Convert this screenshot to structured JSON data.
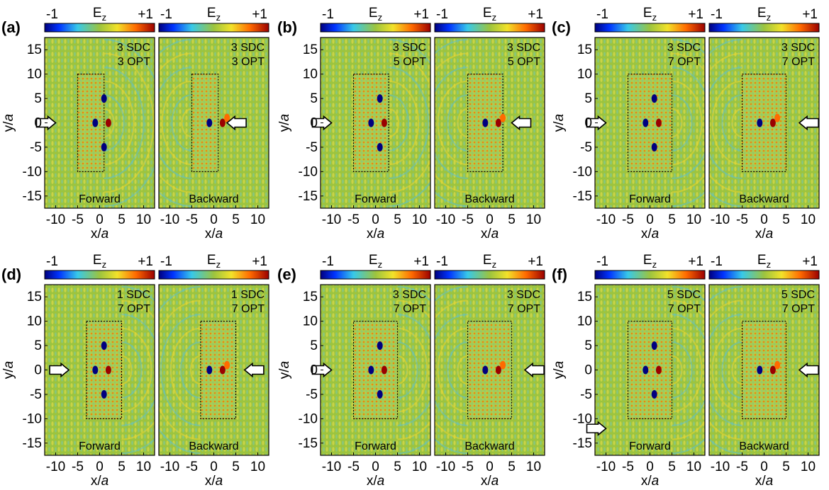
{
  "figure": {
    "colorbar": {
      "min_label": "-1",
      "max_label": "+1",
      "field": "E",
      "field_sub": "z"
    },
    "axis": {
      "x_label_main": "x/",
      "x_label_italic": "a",
      "y_label_main": "y/",
      "y_label_italic": "a",
      "x_ticks": [
        "-10",
        "-5",
        "0",
        "5",
        "10"
      ],
      "y_ticks": [
        "15",
        "10",
        "5",
        "0",
        "-5",
        "-10",
        "-15"
      ]
    },
    "colors": {
      "field_background": "#9cc43f",
      "cmap": [
        "#00007f",
        "#0055ff",
        "#38c9e8",
        "#9cc43f",
        "#f2e22a",
        "#ff6a00",
        "#9b0000"
      ]
    },
    "groups": [
      {
        "label": "(a)",
        "sdc": "3 SDC",
        "opt": "3 OPT",
        "fwd": "Forward",
        "bwd": "Backward"
      },
      {
        "label": "(b)",
        "sdc": "3 SDC",
        "opt": "5 OPT",
        "fwd": "Forward",
        "bwd": "Backward"
      },
      {
        "label": "(c)",
        "sdc": "3 SDC",
        "opt": "7 OPT",
        "fwd": "Forward",
        "bwd": "Backward"
      },
      {
        "label": "(d)",
        "sdc": "1 SDC",
        "opt": "7 OPT",
        "fwd": "Forward",
        "bwd": "Backward"
      },
      {
        "label": "(e)",
        "sdc": "3 SDC",
        "opt": "7 OPT",
        "fwd": "Forward",
        "bwd": "Backward"
      },
      {
        "label": "(f)",
        "sdc": "5 SDC",
        "opt": "7 OPT",
        "fwd": "Forward",
        "bwd": "Backward"
      }
    ]
  }
}
